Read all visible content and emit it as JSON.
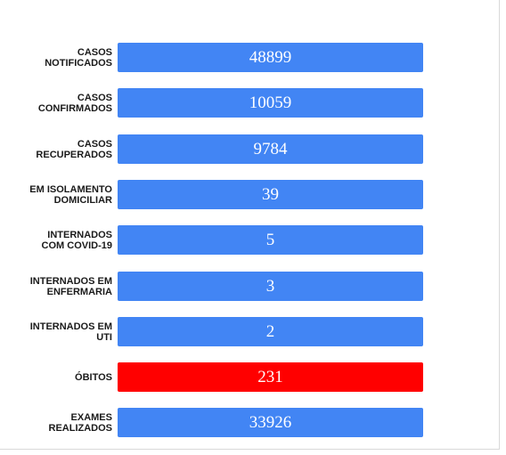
{
  "colors": {
    "default_bar": "#4285f4",
    "highlight_bar": "#ff0000"
  },
  "chart_data": {
    "type": "bar",
    "orientation": "horizontal",
    "categories": [
      "CASOS\nNOTIFICADOS",
      "CASOS\nCONFIRMADOS",
      "CASOS\nRECUPERADOS",
      "EM ISOLAMENTO\nDOMICILIAR",
      "INTERNADOS\nCOM COVID-19",
      "INTERNADOS EM\nENFERMARIA",
      "INTERNADOS EM\nUTI",
      "ÓBITOS",
      "EXAMES\nREALIZADOS"
    ],
    "values": [
      48899,
      10059,
      9784,
      39,
      5,
      3,
      2,
      231,
      33926
    ],
    "value_labels": [
      "48899",
      "10059",
      "9784",
      "39",
      "5",
      "3",
      "2",
      "231",
      "33926"
    ],
    "bar_colors": [
      "#4285f4",
      "#4285f4",
      "#4285f4",
      "#4285f4",
      "#4285f4",
      "#4285f4",
      "#4285f4",
      "#ff0000",
      "#4285f4"
    ],
    "grid": false,
    "legend": "none"
  }
}
